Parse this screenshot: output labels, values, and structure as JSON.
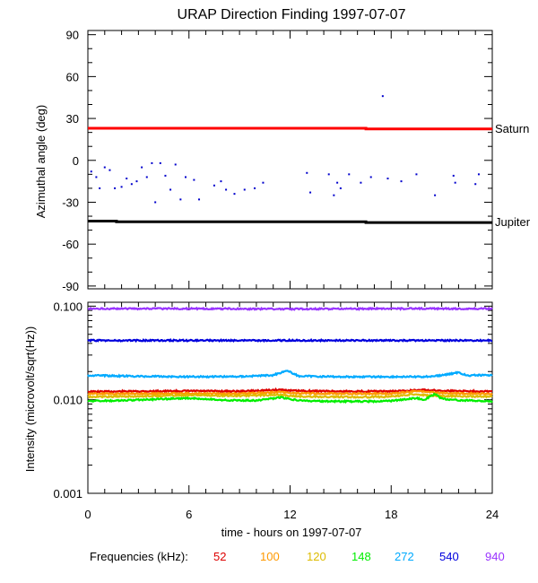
{
  "chart_data": [
    {
      "type": "scatter",
      "title": "URAP Direction Finding  1997-07-07",
      "xlabel": "",
      "ylabel": "Azimuthal angle (deg)",
      "xlim": [
        0,
        24
      ],
      "ylim": [
        -92,
        93
      ],
      "yticks": [
        90,
        60,
        30,
        0,
        -30,
        -60,
        -90
      ],
      "reference_lines": [
        {
          "name": "Saturn",
          "color": "#ff0000",
          "x": [
            0,
            16.5,
            16.5,
            24
          ],
          "y": [
            23,
            23,
            22.5,
            22.5
          ]
        },
        {
          "name": "Jupiter",
          "color": "#000000",
          "x": [
            0,
            1.7,
            1.7,
            16.5,
            16.5,
            24
          ],
          "y": [
            -43.5,
            -43.5,
            -44,
            -44,
            -44.5,
            -44.5
          ]
        }
      ],
      "points": [
        {
          "x": 0.2,
          "y": -8
        },
        {
          "x": 0.5,
          "y": -12
        },
        {
          "x": 0.7,
          "y": -20
        },
        {
          "x": 1.0,
          "y": -5
        },
        {
          "x": 1.3,
          "y": -7
        },
        {
          "x": 1.6,
          "y": -20
        },
        {
          "x": 2.0,
          "y": -19
        },
        {
          "x": 2.3,
          "y": -13
        },
        {
          "x": 2.6,
          "y": -17
        },
        {
          "x": 2.9,
          "y": -15
        },
        {
          "x": 3.2,
          "y": -5
        },
        {
          "x": 3.5,
          "y": -12
        },
        {
          "x": 3.8,
          "y": -2
        },
        {
          "x": 4.0,
          "y": -30
        },
        {
          "x": 4.3,
          "y": -2
        },
        {
          "x": 4.6,
          "y": -11
        },
        {
          "x": 4.9,
          "y": -21
        },
        {
          "x": 5.2,
          "y": -3
        },
        {
          "x": 5.5,
          "y": -28
        },
        {
          "x": 5.8,
          "y": -12
        },
        {
          "x": 6.3,
          "y": -14
        },
        {
          "x": 6.6,
          "y": -28
        },
        {
          "x": 7.5,
          "y": -18
        },
        {
          "x": 7.9,
          "y": -15
        },
        {
          "x": 8.2,
          "y": -21
        },
        {
          "x": 8.7,
          "y": -24
        },
        {
          "x": 9.3,
          "y": -21
        },
        {
          "x": 9.9,
          "y": -20
        },
        {
          "x": 10.4,
          "y": -16
        },
        {
          "x": 13.0,
          "y": -9
        },
        {
          "x": 13.2,
          "y": -23
        },
        {
          "x": 14.3,
          "y": -10
        },
        {
          "x": 14.6,
          "y": -25
        },
        {
          "x": 14.8,
          "y": -16
        },
        {
          "x": 15.0,
          "y": -20
        },
        {
          "x": 15.5,
          "y": -10
        },
        {
          "x": 16.2,
          "y": -16
        },
        {
          "x": 16.8,
          "y": -12
        },
        {
          "x": 17.5,
          "y": 46
        },
        {
          "x": 17.8,
          "y": -13
        },
        {
          "x": 18.6,
          "y": -15
        },
        {
          "x": 19.5,
          "y": -10
        },
        {
          "x": 20.6,
          "y": -25
        },
        {
          "x": 21.7,
          "y": -11
        },
        {
          "x": 21.8,
          "y": -16
        },
        {
          "x": 23.0,
          "y": -17
        },
        {
          "x": 23.2,
          "y": -10
        }
      ]
    },
    {
      "type": "line",
      "title": "",
      "xlabel": "time - hours on 1997-07-07",
      "ylabel": "Intensity (microvolt/sqrt(Hz))",
      "yscale": "log",
      "xlim": [
        0,
        24
      ],
      "ylim": [
        0.001,
        0.11
      ],
      "xticks": [
        0,
        6,
        12,
        18,
        24
      ],
      "yticks": [
        0.1,
        0.01,
        0.001
      ],
      "ytick_labels": [
        "0.100",
        "0.010",
        "0.001"
      ],
      "legend_title": "Frequencies (kHz):",
      "series": [
        {
          "name": "52",
          "color": "#dd0000",
          "x": [
            0,
            3,
            6,
            9,
            11.5,
            12,
            13,
            15,
            17,
            18,
            19.5,
            20,
            21,
            22,
            24
          ],
          "values": [
            0.0122,
            0.0123,
            0.0124,
            0.0123,
            0.0128,
            0.0125,
            0.0124,
            0.0123,
            0.0123,
            0.0123,
            0.0126,
            0.0127,
            0.0125,
            0.0124,
            0.0123
          ]
        },
        {
          "name": "100",
          "color": "#ff9900",
          "x": [
            0,
            3,
            6,
            9,
            11.5,
            12,
            13,
            15,
            17,
            18,
            19.5,
            20,
            21,
            22,
            24
          ],
          "values": [
            0.0116,
            0.0116,
            0.0117,
            0.0116,
            0.0121,
            0.0118,
            0.0117,
            0.0116,
            0.0116,
            0.0116,
            0.0124,
            0.0121,
            0.0118,
            0.0117,
            0.0116
          ]
        },
        {
          "name": "120",
          "color": "#ddbb00",
          "x": [
            0,
            3,
            6,
            9,
            11.5,
            12,
            13,
            15,
            17,
            18,
            19.5,
            20,
            21,
            22,
            24
          ],
          "values": [
            0.0107,
            0.0109,
            0.0112,
            0.011,
            0.0113,
            0.011,
            0.0108,
            0.0107,
            0.0107,
            0.0108,
            0.0115,
            0.0112,
            0.011,
            0.0109,
            0.0108
          ]
        },
        {
          "name": "148",
          "color": "#00ee00",
          "x": [
            0,
            2,
            4,
            6,
            8,
            10,
            11.5,
            12,
            13,
            15,
            17,
            18,
            19.5,
            20,
            20.6,
            21,
            22,
            24
          ],
          "values": [
            0.0097,
            0.0098,
            0.0101,
            0.0104,
            0.0099,
            0.0098,
            0.0106,
            0.0101,
            0.0097,
            0.0096,
            0.0096,
            0.0097,
            0.0104,
            0.01,
            0.0115,
            0.0102,
            0.0099,
            0.0096
          ]
        },
        {
          "name": "272",
          "color": "#00aaff",
          "x": [
            0,
            3,
            6,
            9,
            11,
            11.8,
            12.5,
            15,
            18,
            20,
            21,
            22,
            22.5,
            23,
            24
          ],
          "values": [
            0.0182,
            0.0178,
            0.0176,
            0.0177,
            0.0183,
            0.0205,
            0.0179,
            0.0176,
            0.0176,
            0.0176,
            0.0182,
            0.0196,
            0.018,
            0.0183,
            0.0182
          ]
        },
        {
          "name": "540",
          "color": "#0000dd",
          "x": [
            0,
            6,
            12,
            18,
            24
          ],
          "values": [
            0.043,
            0.043,
            0.043,
            0.043,
            0.043
          ]
        },
        {
          "name": "940",
          "color": "#9933ff",
          "x": [
            0,
            6,
            12,
            18,
            24
          ],
          "values": [
            0.094,
            0.094,
            0.093,
            0.094,
            0.094
          ]
        }
      ]
    }
  ]
}
